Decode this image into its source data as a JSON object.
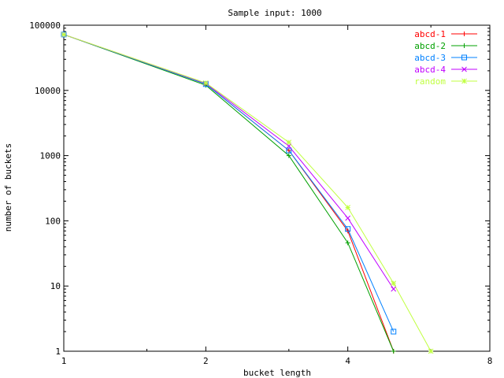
{
  "chart_data": {
    "type": "line",
    "title": "Sample input: 1000",
    "xlabel": "bucket length",
    "ylabel": "number of buckets",
    "xscale": "log2",
    "yscale": "log10",
    "xlim": [
      1,
      8
    ],
    "ylim": [
      1,
      100000
    ],
    "x_ticks": [
      {
        "value": 1,
        "label": "1"
      },
      {
        "value": 2,
        "label": "2"
      },
      {
        "value": 4,
        "label": "4"
      },
      {
        "value": 8,
        "label": "8"
      }
    ],
    "y_ticks": [
      {
        "value": 1,
        "label": "1"
      },
      {
        "value": 10,
        "label": "10"
      },
      {
        "value": 100,
        "label": "100"
      },
      {
        "value": 1000,
        "label": "1000"
      },
      {
        "value": 10000,
        "label": "10000"
      },
      {
        "value": 100000,
        "label": "100000"
      }
    ],
    "grid": false,
    "legend_position": "top-right",
    "series": [
      {
        "name": "abcd-1",
        "color": "#ff0000",
        "marker": "plus",
        "x": [
          1,
          2,
          3,
          4,
          5
        ],
        "y": [
          72000,
          12500,
          1200,
          70,
          1
        ]
      },
      {
        "name": "abcd-2",
        "color": "#00a000",
        "marker": "plus",
        "x": [
          1,
          2,
          3,
          4,
          5
        ],
        "y": [
          72000,
          12000,
          1000,
          46,
          1
        ]
      },
      {
        "name": "abcd-3",
        "color": "#0080ff",
        "marker": "square",
        "x": [
          1,
          2,
          3,
          4,
          5
        ],
        "y": [
          72000,
          12500,
          1200,
          75,
          2
        ]
      },
      {
        "name": "abcd-4",
        "color": "#c000ff",
        "marker": "cross",
        "x": [
          1,
          2,
          3,
          4,
          5
        ],
        "y": [
          72000,
          12800,
          1400,
          110,
          9
        ]
      },
      {
        "name": "random",
        "color": "#c0ff40",
        "marker": "star",
        "x": [
          1,
          2,
          3,
          4,
          5,
          6
        ],
        "y": [
          72000,
          13000,
          1600,
          160,
          11,
          1
        ]
      }
    ]
  }
}
